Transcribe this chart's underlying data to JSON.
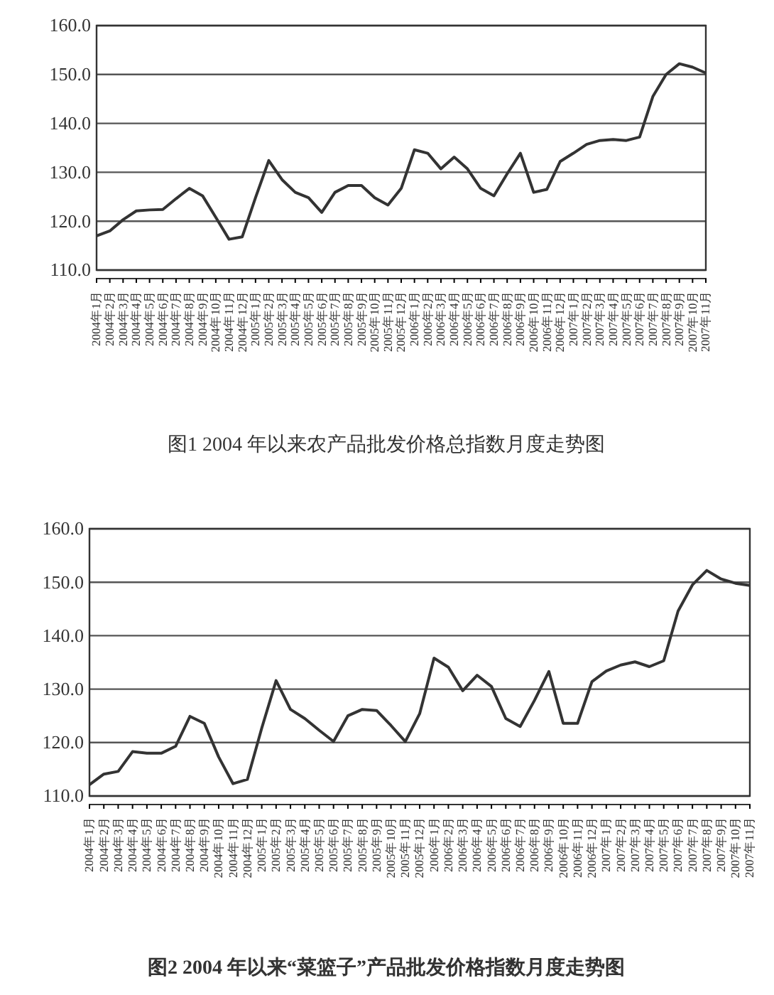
{
  "chart_data": [
    {
      "type": "line",
      "title": "图1   2004 年以来农产品批发价格总指数月度走势图",
      "categories": [
        "2004年1月",
        "2004年2月",
        "2004年3月",
        "2004年4月",
        "2004年5月",
        "2004年6月",
        "2004年7月",
        "2004年8月",
        "2004年9月",
        "2004年10月",
        "2004年11月",
        "2004年12月",
        "2005年1月",
        "2005年2月",
        "2005年3月",
        "2005年4月",
        "2005年5月",
        "2005年6月",
        "2005年7月",
        "2005年8月",
        "2005年9月",
        "2005年10月",
        "2005年11月",
        "2005年12月",
        "2006年1月",
        "2006年2月",
        "2006年3月",
        "2006年4月",
        "2006年5月",
        "2006年6月",
        "2006年7月",
        "2006年8月",
        "2006年9月",
        "2006年10月",
        "2006年11月",
        "2006年12月",
        "2007年1月",
        "2007年2月",
        "2007年3月",
        "2007年4月",
        "2007年5月",
        "2007年6月",
        "2007年7月",
        "2007年8月",
        "2007年9月",
        "2007年10月",
        "2007年11月"
      ],
      "series": [
        {
          "color": "#333333",
          "values": [
            117.0,
            118.0,
            120.3,
            122.1,
            122.3,
            122.4,
            124.6,
            126.7,
            125.2,
            120.8,
            116.3,
            116.8,
            124.8,
            132.4,
            128.5,
            125.9,
            124.8,
            121.8,
            125.9,
            127.3,
            127.3,
            124.8,
            123.3,
            126.7,
            134.6,
            133.9,
            130.7,
            133.1,
            130.7,
            126.7,
            125.2,
            129.7,
            133.9,
            125.9,
            126.5,
            132.2,
            133.9,
            135.7,
            136.5,
            136.7,
            136.5,
            137.2,
            145.5,
            150.0,
            152.2,
            151.5,
            150.3
          ]
        }
      ],
      "ylim": [
        110,
        160
      ],
      "yticks": [
        {
          "value": 110,
          "label": "110.0"
        },
        {
          "value": 120,
          "label": "120.0"
        },
        {
          "value": 130,
          "label": "130.0"
        },
        {
          "value": 140,
          "label": "140.0"
        },
        {
          "value": 150,
          "label": "150.0"
        },
        {
          "value": 160,
          "label": "160.0"
        }
      ],
      "grid": "y"
    },
    {
      "type": "line",
      "title": "图2   2004 年以来“菜篮子”产品批发价格指数月度走势图",
      "categories": [
        "2004年1月",
        "2004年2月",
        "2004年3月",
        "2004年4月",
        "2004年5月",
        "2004年6月",
        "2004年7月",
        "2004年8月",
        "2004年9月",
        "2004年10月",
        "2004年11月",
        "2004年12月",
        "2005年1月",
        "2005年2月",
        "2005年3月",
        "2005年4月",
        "2005年5月",
        "2005年6月",
        "2005年7月",
        "2005年8月",
        "2005年9月",
        "2005年10月",
        "2005年11月",
        "2005年12月",
        "2006年1月",
        "2006年2月",
        "2006年3月",
        "2006年4月",
        "2006年5月",
        "2006年6月",
        "2006年7月",
        "2006年8月",
        "2006年9月",
        "2006年10月",
        "2006年11月",
        "2006年12月",
        "2007年1月",
        "2007年2月",
        "2007年3月",
        "2007年4月",
        "2007年5月",
        "2007年6月",
        "2007年7月",
        "2007年8月",
        "2007年9月",
        "2007年10月",
        "2007年11月"
      ],
      "series": [
        {
          "color": "#333333",
          "values": [
            112.1,
            114.1,
            114.6,
            118.3,
            118.0,
            118.0,
            119.3,
            124.9,
            123.6,
            117.3,
            112.3,
            113.1,
            122.7,
            131.6,
            126.2,
            124.5,
            122.3,
            120.2,
            125.0,
            126.2,
            126.0,
            123.2,
            120.2,
            125.4,
            135.8,
            134.1,
            129.7,
            132.6,
            130.5,
            124.5,
            123.0,
            127.9,
            133.3,
            123.6,
            123.6,
            131.4,
            133.4,
            134.5,
            135.1,
            134.2,
            135.3,
            144.6,
            149.5,
            152.2,
            150.6,
            149.8,
            149.4
          ]
        }
      ],
      "ylim": [
        110,
        160
      ],
      "yticks": [
        {
          "value": 110,
          "label": "110.0"
        },
        {
          "value": 120,
          "label": "120.0"
        },
        {
          "value": 130,
          "label": "130.0"
        },
        {
          "value": 140,
          "label": "140.0"
        },
        {
          "value": 150,
          "label": "150.0"
        },
        {
          "value": 160,
          "label": "160.0"
        }
      ],
      "grid": "y"
    }
  ]
}
